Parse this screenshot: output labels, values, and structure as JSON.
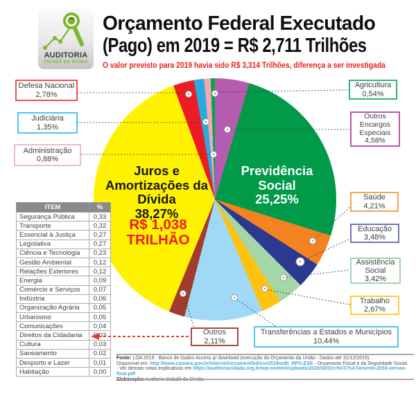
{
  "header": {
    "logo_title": "AUDITORIA",
    "logo_subtitle": "CIDADÃ DA DÍVIDA",
    "title_line1": "Orçamento Federal Executado",
    "title_line2": "(Pago) em 2019 = R$ 2,711 Trilhões",
    "subtitle": "O valor previsto para 2019 havia sido R$ 3,314 Trilhões, diferença a ser investigada"
  },
  "chart_data": {
    "type": "pie",
    "title": "Orçamento Federal Executado (Pago) em 2019 = R$ 2,711 Trilhões",
    "total": "R$ 2,711 Trilhões",
    "start_angle_deg": 0,
    "direction": "clockwise",
    "slices": [
      {
        "name": "Outros Encargos Especiais",
        "pct": 4.58,
        "label": "4,58%",
        "color": "#B55CB0"
      },
      {
        "name": "Previdência Social",
        "pct": 25.25,
        "label": "25,25%",
        "color": "#009A49"
      },
      {
        "name": "Saúde",
        "pct": 4.21,
        "label": "4,21%",
        "color": "#F58220"
      },
      {
        "name": "Educação",
        "pct": 3.48,
        "label": "3,48%",
        "color": "#2B3990"
      },
      {
        "name": "Assistência Social",
        "pct": 3.42,
        "label": "3,42%",
        "color": "#A5D6A5"
      },
      {
        "name": "Trabalho",
        "pct": 2.67,
        "label": "2,67%",
        "color": "#FFC20E"
      },
      {
        "name": "Transferências a Estados e Municípios",
        "pct": 10.44,
        "label": "10,44%",
        "color": "#9FD9F6"
      },
      {
        "name": "Outros",
        "pct": 2.11,
        "label": "2,11%",
        "color": "#A23B2E"
      },
      {
        "name": "Juros e Amortizações da Dívida",
        "pct": 38.27,
        "label": "38,27%",
        "color": "#FFF200"
      },
      {
        "name": "Defesa Nacional",
        "pct": 2.78,
        "label": "2,78%",
        "color": "#EC1C24"
      },
      {
        "name": "Judiciária",
        "pct": 1.35,
        "label": "1,35%",
        "color": "#29ABE2"
      },
      {
        "name": "Administração",
        "pct": 0.88,
        "label": "0,88%",
        "color": "#F3A9AF"
      },
      {
        "name": "Agricultura",
        "pct": 0.54,
        "label": "0,54%",
        "color": "#00A651"
      }
    ],
    "inner_labels": {
      "juros": {
        "name": "Juros e Amortizações da Dívida",
        "pct": "38,27%",
        "value": "R$ 1,038 TRILHÃO"
      },
      "previdencia": {
        "name": "Previdência Social",
        "pct": "25,25%"
      }
    }
  },
  "callouts": [
    {
      "name": "Defesa Nacional",
      "pct": "2,78%",
      "border": "#F04E4E"
    },
    {
      "name": "Judiciária",
      "pct": "1,35%",
      "border": "#4EC3F5"
    },
    {
      "name": "Administração",
      "pct": "0,88%",
      "border": "#F7B9BE"
    },
    {
      "name": "Agricultura",
      "pct": "0,54%",
      "border": "#2BB673"
    },
    {
      "name": "Outros Encargos Especiais",
      "pct": "4,58%",
      "border": "#BA55AB"
    },
    {
      "name": "Saúde",
      "pct": "4,21%",
      "border": "#F5A54E"
    },
    {
      "name": "Educação",
      "pct": "3,48%",
      "border": "#6B74B8"
    },
    {
      "name": "Assistência Social",
      "pct": "3,42%",
      "border": "#9CD6A9"
    },
    {
      "name": "Trabalho",
      "pct": "2,67%",
      "border": "#FFCC33"
    },
    {
      "name": "Transferências a Estados e Municípios",
      "pct": "10,44%",
      "border": "#4FC1EC"
    },
    {
      "name": "Outros",
      "pct": "2,11%",
      "border": "#A8453C"
    }
  ],
  "table": {
    "headers": [
      "ITEM",
      "%"
    ],
    "rows": [
      [
        "Segurança Pública",
        "0,33"
      ],
      [
        "Transporte",
        "0,32"
      ],
      [
        "Essencial à Justiça",
        "0,27"
      ],
      [
        "Legislativa",
        "0,27"
      ],
      [
        "Ciência e Tecnologia",
        "0,23"
      ],
      [
        "Gestão Ambiental",
        "0,12"
      ],
      [
        "Relações Exteriores",
        "0,12"
      ],
      [
        "Energia",
        "0,09"
      ],
      [
        "Comércio e Serviços",
        "0,07"
      ],
      [
        "Indústria",
        "0,06"
      ],
      [
        "Organização Agrária",
        "0,05"
      ],
      [
        "Urbanismo",
        "0,05"
      ],
      [
        "Comunicações",
        "0,04"
      ],
      [
        "Direitos da Cidadania",
        "0,03"
      ],
      [
        "Cultura",
        "0,03"
      ],
      [
        "Saneamento",
        "0,02"
      ],
      [
        "Desporto e Lazer",
        "0,01"
      ],
      [
        "Habitação",
        "0,00"
      ]
    ]
  },
  "footer": {
    "fonte_label": "Fonte:",
    "fonte_text": " LOA 2019 - Banco de Dados Access p/ download (execução do Orçamento da União - Dados até 31/12/2019).",
    "disponivel_prefix": "Disponível em: ",
    "url1": "http://www.camara.gov.br/internet/orcament/bd/exe2019mdb_RPG.EXE",
    "disponivel_suffix": " - Orçamento Fiscal e da Seguridade Social.",
    "notas_prefix": "- Ver demais notas explicativas em ",
    "url2": "https://auditoriacidada.org.br/wp-content/uploads/2020/02/Orc%CC%A7amento-2019-versao-final.pdf",
    "elaboracao_label": "Elaboração:",
    "elaboracao_text": " Auditoria Cidadã da Dívida."
  }
}
